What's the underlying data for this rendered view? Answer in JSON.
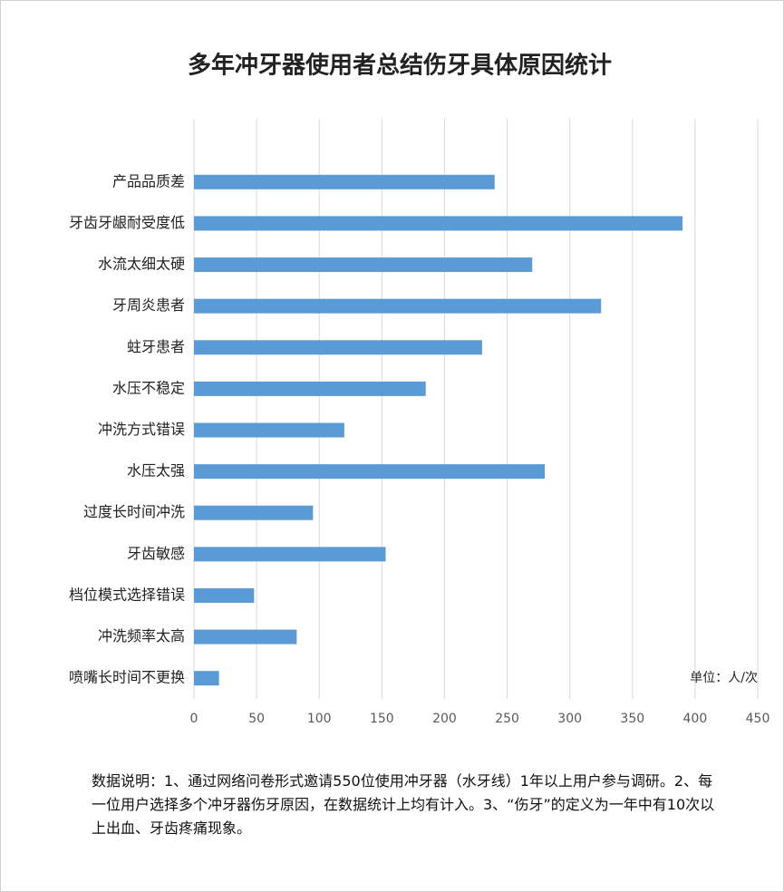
{
  "chart_data": {
    "type": "barh",
    "title": "多年冲牙器使用者总结伤牙具体原因统计",
    "categories": [
      "产品品质差",
      "牙齿牙龈耐受度低",
      "水流太细太硬",
      "牙周炎患者",
      "蛀牙患者",
      "水压不稳定",
      "冲洗方式错误",
      "水压太强",
      "过度长时间冲洗",
      "牙齿敏感",
      "档位模式选择错误",
      "冲洗频率太高",
      "喷嘴长时间不更换"
    ],
    "values": [
      240,
      390,
      270,
      325,
      230,
      185,
      120,
      280,
      95,
      153,
      48,
      82,
      20
    ],
    "color": "#5b9bd5",
    "xlim": [
      0,
      450
    ],
    "xticks": [
      0,
      50,
      100,
      150,
      200,
      250,
      300,
      350,
      400,
      450
    ],
    "grid": true,
    "unit_note": "单位：人/次",
    "footnote": "数据说明：1、通过网络问卷形式邀请550位使用冲牙器（水牙线）1年以上用户参与调研。2、每一位用户选择多个冲牙器伤牙原因，在数据统计上均有计入。3、“伤牙”的定义为一年中有10次以上出血、牙齿疼痛现象。"
  }
}
